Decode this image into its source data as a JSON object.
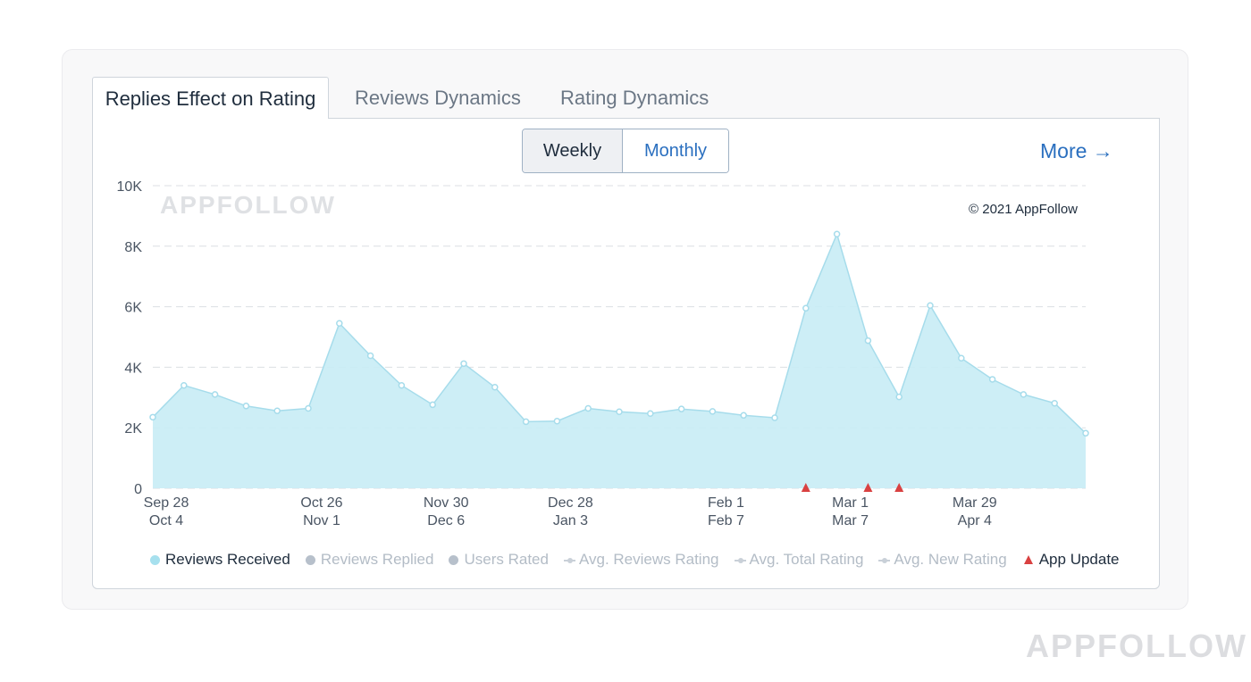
{
  "tabs": [
    {
      "label": "Replies Effect on Rating",
      "active": true
    },
    {
      "label": "Reviews Dynamics",
      "active": false
    },
    {
      "label": "Rating Dynamics",
      "active": false
    }
  ],
  "period_toggle": {
    "weekly": "Weekly",
    "monthly": "Monthly",
    "selected": "Weekly"
  },
  "more_link": "More →",
  "watermark_chart": "APPFOLLOW",
  "copyright": "© 2021 AppFollow",
  "watermark_page": "APPFOLLOW",
  "colors": {
    "area_fill": "#c8ecf5",
    "area_line": "#a6dceb",
    "app_update": "#d94141",
    "link": "#2a6fbf",
    "legend_inactive": "#b3bcc6",
    "reviews_replied": "#b7c0cb"
  },
  "chart_data": {
    "type": "area",
    "ylim": [
      0,
      10000
    ],
    "y_ticks": [
      "0",
      "2K",
      "4K",
      "6K",
      "8K",
      "10K"
    ],
    "x_tick_labels": [
      [
        "Sep 28",
        "Oct 4"
      ],
      [
        "Oct 26",
        "Nov 1"
      ],
      [
        "Nov 30",
        "Dec 6"
      ],
      [
        "Dec 28",
        "Jan 3"
      ],
      [
        "Feb 1",
        "Feb 7"
      ],
      [
        "Mar 1",
        "Mar 7"
      ],
      [
        "Mar 29",
        "Apr 4"
      ]
    ],
    "x_tick_week_index": [
      0,
      5,
      9,
      13,
      18,
      22,
      26
    ],
    "series": [
      {
        "name": "Reviews Received",
        "values": [
          2350,
          3400,
          3100,
          2720,
          2560,
          2640,
          5450,
          4380,
          3400,
          2760,
          4120,
          3340,
          2200,
          2220,
          2640,
          2530,
          2470,
          2620,
          2540,
          2410,
          2330,
          5950,
          8400,
          4880,
          3020,
          6040,
          4300,
          3600,
          3100,
          2810,
          1820
        ]
      }
    ],
    "app_update_week_index": [
      21,
      23,
      24
    ],
    "legend": [
      {
        "label": "Reviews Received",
        "marker": "dot",
        "color": "#a6e0ee",
        "active": true
      },
      {
        "label": "Reviews Replied",
        "marker": "dot",
        "color": "#b7c0cb",
        "active": false
      },
      {
        "label": "Users Rated",
        "marker": "dot",
        "color": "#b7c0cb",
        "active": false
      },
      {
        "label": "Avg. Reviews Rating",
        "marker": "line",
        "active": false
      },
      {
        "label": "Avg. Total Rating",
        "marker": "line",
        "active": false
      },
      {
        "label": "Avg. New Rating",
        "marker": "line",
        "active": false
      },
      {
        "label": "App Update",
        "marker": "triangle",
        "color": "#d94141",
        "active": true
      }
    ],
    "grid": true
  }
}
